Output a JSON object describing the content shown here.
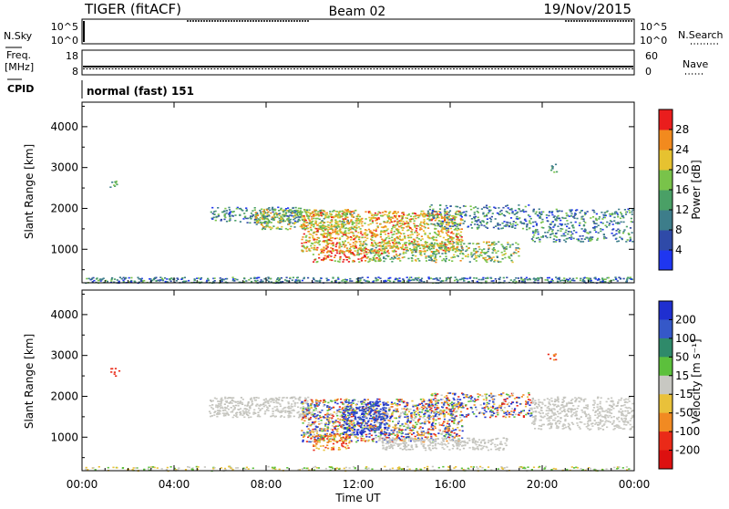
{
  "header": {
    "station": "TIGER (fitACF)",
    "beam": "Beam 02",
    "date": "19/Nov/2015"
  },
  "strips": {
    "nsky": {
      "label": "N.Sky",
      "ticks": [
        "10^5",
        "10^0"
      ]
    },
    "nsearch": {
      "label": "N.Search",
      "ticks": [
        "10^5",
        "10^0"
      ]
    },
    "freq": {
      "label_line1": "Freq.",
      "label_line2": "[MHz]",
      "ticks": [
        "18",
        "8"
      ]
    },
    "nave": {
      "label": "Nave",
      "ticks": [
        "60",
        "0"
      ]
    },
    "cpid": {
      "label": "CPID",
      "value": "normal (fast) 151"
    }
  },
  "chart_data": [
    {
      "type": "heatmap",
      "panel": "power",
      "ylabel": "Slant Range [km]",
      "yticks": [
        "1000",
        "2000",
        "3000",
        "4000"
      ],
      "ylim": [
        180,
        4600
      ],
      "colorbar": {
        "title": "Power [dB]",
        "ticks": [
          "4",
          "8",
          "12",
          "16",
          "20",
          "24",
          "28"
        ],
        "colors": [
          "#1f36f0",
          "#2f4aa8",
          "#3d7d8a",
          "#4aa066",
          "#79c34a",
          "#e6c230",
          "#f28a1e",
          "#ea1d1d"
        ]
      }
    },
    {
      "type": "heatmap",
      "panel": "velocity",
      "ylabel": "Slant Range [km]",
      "yticks": [
        "1000",
        "2000",
        "3000",
        "4000"
      ],
      "ylim": [
        180,
        4600
      ],
      "colorbar": {
        "title": "Velocity [m s⁻¹]",
        "ticks": [
          "200",
          "100",
          "50",
          "15",
          "-15",
          "-50",
          "-100",
          "-200"
        ],
        "colors": [
          "#1f2fd0",
          "#3558c8",
          "#2f8a6a",
          "#5cc03c",
          "#c8c8c2",
          "#e9c13a",
          "#f18a22",
          "#ea2a18",
          "#dd1010"
        ]
      },
      "ground_scatter_color": "#c8c8c2"
    }
  ],
  "xaxis": {
    "label": "Time UT",
    "ticks": [
      "00:00",
      "04:00",
      "08:00",
      "12:00",
      "16:00",
      "20:00",
      "00:00"
    ]
  }
}
